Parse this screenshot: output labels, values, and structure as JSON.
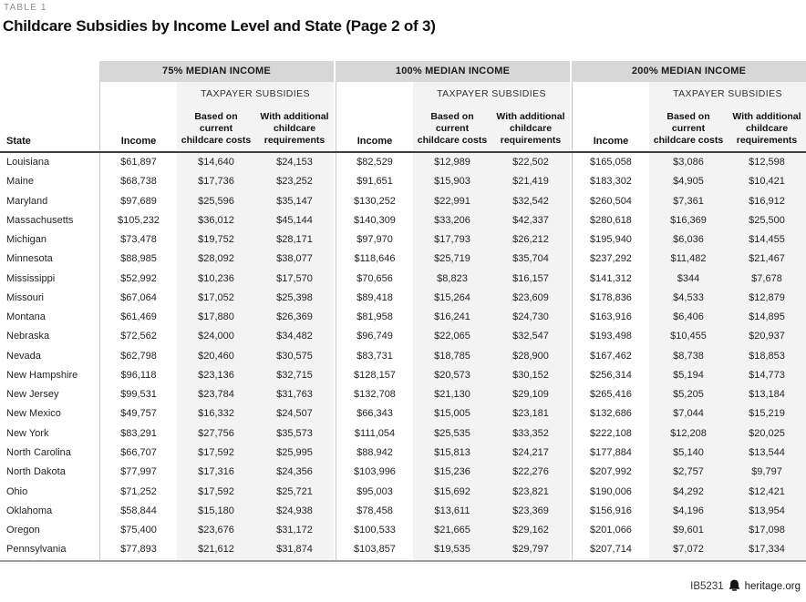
{
  "page": {
    "table_label": "TABLE 1",
    "title": "Childcare Subsidies by Income Level and State (Page 2 of 3)",
    "footer": {
      "doc_id": "IB5231",
      "site": "heritage.org",
      "icon": "liberty-bell-icon"
    }
  },
  "colors": {
    "band_bg": "#d7d7d7",
    "shade_bg": "#f3f3f3",
    "rule_dark": "#3f3f3f",
    "rule_light": "#9e9e9e"
  },
  "header": {
    "state": "State",
    "groups": [
      {
        "title": "75% MEDIAN INCOME",
        "subsidies": "TAXPAYER SUBSIDIES",
        "income": "Income",
        "based": "Based on\ncurrent\nchildcare costs",
        "additional": "With additional\nchildcare\nrequirements"
      },
      {
        "title": "100% MEDIAN INCOME",
        "subsidies": "TAXPAYER SUBSIDIES",
        "income": "Income",
        "based": "Based on\ncurrent\nchildcare costs",
        "additional": "With additional\nchildcare\nrequirements"
      },
      {
        "title": "200% MEDIAN INCOME",
        "subsidies": "TAXPAYER SUBSIDIES",
        "income": "Income",
        "based": "Based on\ncurrent\nchildcare costs",
        "additional": "With additional\nchildcare\nrequirements"
      }
    ]
  },
  "chart_data": {
    "type": "table",
    "title": "Childcare Subsidies by Income Level and State (Page 2 of 3)",
    "column_groups": [
      "75% MEDIAN INCOME",
      "100% MEDIAN INCOME",
      "200% MEDIAN INCOME"
    ],
    "columns_per_group": [
      "Income",
      "Taxpayer subsidies based on current childcare costs",
      "Taxpayer subsidies with additional childcare requirements"
    ],
    "unit": "USD",
    "rows": [
      [
        "Louisiana",
        61897,
        14640,
        24153,
        82529,
        12989,
        22502,
        165058,
        3086,
        12598
      ],
      [
        "Maine",
        68738,
        17736,
        23252,
        91651,
        15903,
        21419,
        183302,
        4905,
        10421
      ],
      [
        "Maryland",
        97689,
        25596,
        35147,
        130252,
        22991,
        32542,
        260504,
        7361,
        16912
      ],
      [
        "Massachusetts",
        105232,
        36012,
        45144,
        140309,
        33206,
        42337,
        280618,
        16369,
        25500
      ],
      [
        "Michigan",
        73478,
        19752,
        28171,
        97970,
        17793,
        26212,
        195940,
        6036,
        14455
      ],
      [
        "Minnesota",
        88985,
        28092,
        38077,
        118646,
        25719,
        35704,
        237292,
        11482,
        21467
      ],
      [
        "Mississippi",
        52992,
        10236,
        17570,
        70656,
        8823,
        16157,
        141312,
        344,
        7678
      ],
      [
        "Missouri",
        67064,
        17052,
        25398,
        89418,
        15264,
        23609,
        178836,
        4533,
        12879
      ],
      [
        "Montana",
        61469,
        17880,
        26369,
        81958,
        16241,
        24730,
        163916,
        6406,
        14895
      ],
      [
        "Nebraska",
        72562,
        24000,
        34482,
        96749,
        22065,
        32547,
        193498,
        10455,
        20937
      ],
      [
        "Nevada",
        62798,
        20460,
        30575,
        83731,
        18785,
        28900,
        167462,
        8738,
        18853
      ],
      [
        "New Hampshire",
        96118,
        23136,
        32715,
        128157,
        20573,
        30152,
        256314,
        5194,
        14773
      ],
      [
        "New Jersey",
        99531,
        23784,
        31763,
        132708,
        21130,
        29109,
        265416,
        5205,
        13184
      ],
      [
        "New Mexico",
        49757,
        16332,
        24507,
        66343,
        15005,
        23181,
        132686,
        7044,
        15219
      ],
      [
        "New York",
        83291,
        27756,
        35573,
        111054,
        25535,
        33352,
        222108,
        12208,
        20025
      ],
      [
        "North Carolina",
        66707,
        17592,
        25995,
        88942,
        15813,
        24217,
        177884,
        5140,
        13544
      ],
      [
        "North Dakota",
        77997,
        17316,
        24356,
        103996,
        15236,
        22276,
        207992,
        2757,
        9797
      ],
      [
        "Ohio",
        71252,
        17592,
        25721,
        95003,
        15692,
        23821,
        190006,
        4292,
        12421
      ],
      [
        "Oklahoma",
        58844,
        15180,
        24938,
        78458,
        13611,
        23369,
        156916,
        4196,
        13954
      ],
      [
        "Oregon",
        75400,
        23676,
        31172,
        100533,
        21665,
        29162,
        201066,
        9601,
        17098
      ],
      [
        "Pennsylvania",
        77893,
        21612,
        31874,
        103857,
        19535,
        29797,
        207714,
        7072,
        17334
      ]
    ]
  }
}
